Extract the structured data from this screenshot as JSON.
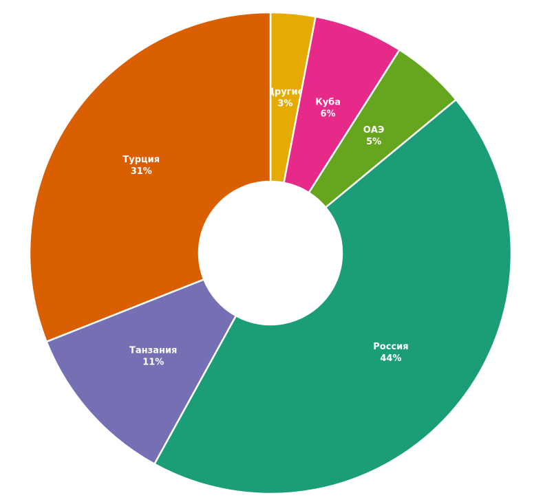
{
  "chart_data": {
    "type": "donut",
    "categories": [
      "Другие",
      "Куба",
      "ОАЭ",
      "Россия",
      "Танзания",
      "Турция"
    ],
    "values": [
      3,
      6,
      5,
      44,
      11,
      31
    ],
    "value_labels": [
      "3%",
      "6%",
      "5%",
      "44%",
      "11%",
      "31%"
    ],
    "colors": [
      "#e6ab02",
      "#e7298a",
      "#66a61e",
      "#1b9e77",
      "#7570b3",
      "#d95f02"
    ]
  }
}
